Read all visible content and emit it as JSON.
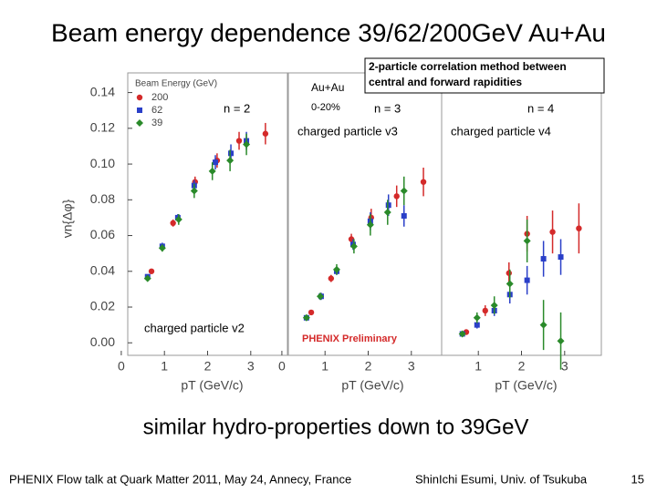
{
  "slide": {
    "title": "Beam energy dependence 39/62/200GeV Au+Au",
    "method_note": [
      "2-particle correlation method between",
      "central and forward rapidities"
    ],
    "panel_captions": [
      "charged particle v2",
      "charged particle v3",
      "charged particle v4"
    ],
    "summary": "similar hydro-properties down to 39GeV",
    "footer_left": "PHENIX Flow talk at Quark Matter 2011, May 24, Annecy, France",
    "footer_right": "ShinIchi Esumi, Univ. of Tsukuba",
    "page_number": "15"
  },
  "chart_data": [
    {
      "type": "scatter",
      "xlabel": "pT (GeV/c)",
      "ylabel": "vn{Δφ}",
      "legend_title": "Beam Energy (GeV)",
      "legend": true,
      "annotations": [
        "n = 2"
      ],
      "xlim": [
        0.15,
        3.85
      ],
      "ylim": [
        -0.007,
        0.151
      ],
      "xticks": [
        0,
        1,
        2,
        3
      ],
      "yticks": [
        {
          "value": 0,
          "label": "0.00"
        },
        0.02,
        0.04,
        0.06,
        0.08,
        {
          "value": 0.1,
          "label": "0.10"
        },
        0.12,
        0.14
      ],
      "series": [
        {
          "name": "200",
          "color": "#d42a2a",
          "marker": "circle",
          "x": [
            0.7,
            1.2,
            1.71,
            2.22,
            2.73,
            3.34
          ],
          "values": [
            0.04,
            0.067,
            0.09,
            0.102,
            0.113,
            0.117
          ],
          "errors": [
            0.001,
            0.002,
            0.003,
            0.004,
            0.005,
            0.006
          ]
        },
        {
          "name": "62",
          "color": "#2a3fc8",
          "marker": "square",
          "x": [
            0.61,
            0.95,
            1.31,
            1.69,
            2.18,
            2.54,
            2.9
          ],
          "values": [
            0.037,
            0.054,
            0.07,
            0.088,
            0.101,
            0.106,
            0.113
          ],
          "errors": [
            0.001,
            0.002,
            0.002,
            0.003,
            0.004,
            0.005,
            0.005
          ]
        },
        {
          "name": "39",
          "color": "#2a8a2a",
          "marker": "diamond",
          "x": [
            0.61,
            0.95,
            1.33,
            1.69,
            2.11,
            2.52,
            2.9
          ],
          "values": [
            0.036,
            0.053,
            0.069,
            0.085,
            0.096,
            0.102,
            0.111
          ],
          "errors": [
            0.001,
            0.002,
            0.003,
            0.004,
            0.005,
            0.006,
            0.006
          ]
        }
      ]
    },
    {
      "type": "scatter",
      "xlabel": "pT (GeV/c)",
      "legend": false,
      "annotations": [
        "Au+Au",
        "0-20%",
        "n = 3",
        "PHENIX Preliminary"
      ],
      "xlim": [
        0.15,
        3.85
      ],
      "ylim": [
        -0.007,
        0.151
      ],
      "xticks": [
        0,
        1,
        2,
        3
      ],
      "series": [
        {
          "color": "#d42a2a",
          "marker": "circle",
          "x": [
            0.68,
            1.14,
            1.61,
            2.07,
            2.66,
            3.28
          ],
          "values": [
            0.017,
            0.036,
            0.058,
            0.07,
            0.082,
            0.09
          ],
          "errors": [
            0.001,
            0.002,
            0.003,
            0.005,
            0.006,
            0.008
          ]
        },
        {
          "color": "#2a3fc8",
          "marker": "square",
          "x": [
            0.57,
            0.91,
            1.27,
            1.65,
            2.05,
            2.47,
            2.83
          ],
          "values": [
            0.014,
            0.026,
            0.04,
            0.055,
            0.068,
            0.077,
            0.071
          ],
          "errors": [
            0.001,
            0.002,
            0.002,
            0.003,
            0.005,
            0.006,
            0.006
          ]
        },
        {
          "color": "#2a8a2a",
          "marker": "diamond",
          "x": [
            0.57,
            0.89,
            1.27,
            1.67,
            2.05,
            2.45,
            2.83
          ],
          "values": [
            0.014,
            0.026,
            0.041,
            0.054,
            0.066,
            0.073,
            0.085
          ],
          "errors": [
            0.001,
            0.002,
            0.003,
            0.004,
            0.006,
            0.007,
            0.008
          ]
        }
      ]
    },
    {
      "type": "scatter",
      "xlabel": "pT (GeV/c)",
      "legend": false,
      "annotations": [
        "n = 4"
      ],
      "xlim": [
        0.15,
        3.85
      ],
      "ylim": [
        -0.007,
        0.151
      ],
      "xticks": [
        1,
        2,
        3
      ],
      "series": [
        {
          "color": "#d42a2a",
          "marker": "circle",
          "x": [
            0.72,
            1.16,
            1.71,
            2.13,
            2.72,
            3.33
          ],
          "values": [
            0.006,
            0.018,
            0.039,
            0.061,
            0.062,
            0.064
          ],
          "errors": [
            0.001,
            0.003,
            0.006,
            0.01,
            0.012,
            0.014
          ]
        },
        {
          "color": "#2a3fc8",
          "marker": "square",
          "x": [
            0.63,
            0.97,
            1.37,
            1.73,
            2.13,
            2.51,
            2.91
          ],
          "values": [
            0.005,
            0.01,
            0.018,
            0.027,
            0.035,
            0.047,
            0.048
          ],
          "errors": [
            0.001,
            0.002,
            0.003,
            0.005,
            0.008,
            0.01,
            0.01
          ]
        },
        {
          "color": "#2a8a2a",
          "marker": "diamond",
          "x": [
            0.63,
            0.97,
            1.37,
            1.73,
            2.13,
            2.51,
            2.91
          ],
          "values": [
            0.005,
            0.014,
            0.021,
            0.033,
            0.057,
            0.01,
            0.001
          ],
          "errors": [
            0.001,
            0.003,
            0.005,
            0.008,
            0.012,
            0.014,
            0.016
          ]
        }
      ]
    }
  ]
}
